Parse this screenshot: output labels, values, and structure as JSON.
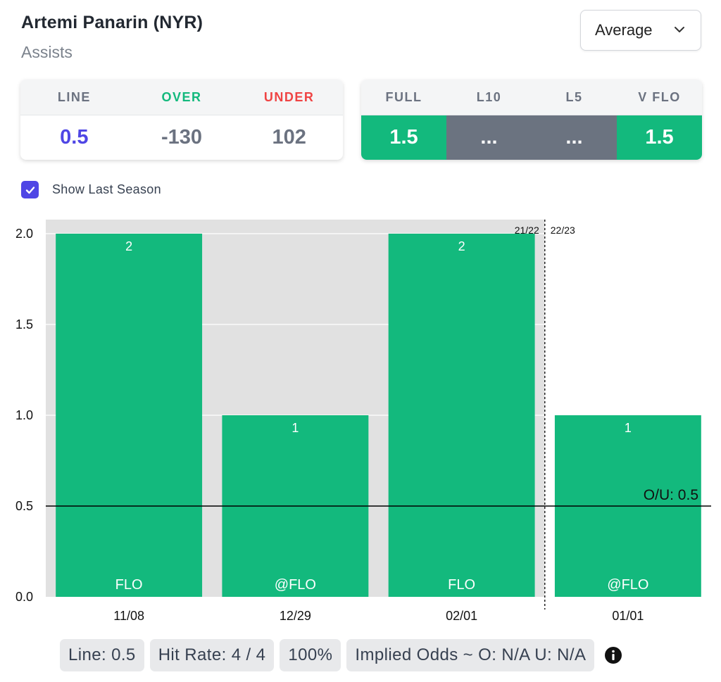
{
  "header": {
    "player": "Artemi Panarin (NYR)",
    "stat": "Assists"
  },
  "dropdown": {
    "selected": "Average"
  },
  "odds": {
    "headers": {
      "line": "LINE",
      "over": "OVER",
      "under": "UNDER"
    },
    "values": {
      "line": "0.5",
      "over": "-130",
      "under": "102"
    },
    "colors": {
      "line_value": "#4f46e5",
      "over_header": "#13b97d",
      "under_header": "#ef4444"
    }
  },
  "splits": {
    "headers": [
      "FULL",
      "L10",
      "L5",
      "V FLO"
    ],
    "values": [
      "1.5",
      "...",
      "...",
      "1.5"
    ]
  },
  "toggle": {
    "label": "Show Last Season",
    "checked": true
  },
  "chart_data": {
    "type": "bar",
    "categories": [
      "11/08",
      "12/29",
      "02/01",
      "01/01"
    ],
    "values": [
      2,
      1,
      2,
      1
    ],
    "bar_labels": [
      "2",
      "1",
      "2",
      "1"
    ],
    "opponents": [
      "FLO",
      "@FLO",
      "FLO",
      "@FLO"
    ],
    "season_of_game": [
      "21/22",
      "21/22",
      "21/22",
      "22/23"
    ],
    "season_labels": [
      "21/22",
      "22/23"
    ],
    "y_ticks": [
      "0.0",
      "0.5",
      "1.0",
      "1.5",
      "2.0"
    ],
    "ylim": [
      0,
      2
    ],
    "line": {
      "value": 0.5,
      "label": "O/U: 0.5"
    },
    "grid": true,
    "colors": {
      "bar": "#13b97d",
      "last_season_bg": "#e1e1e1"
    }
  },
  "footer": {
    "line": "Line: 0.5",
    "hit_rate": "Hit Rate: 4 / 4",
    "pct": "100%",
    "implied": "Implied Odds ~ O: N/A U: N/A"
  }
}
